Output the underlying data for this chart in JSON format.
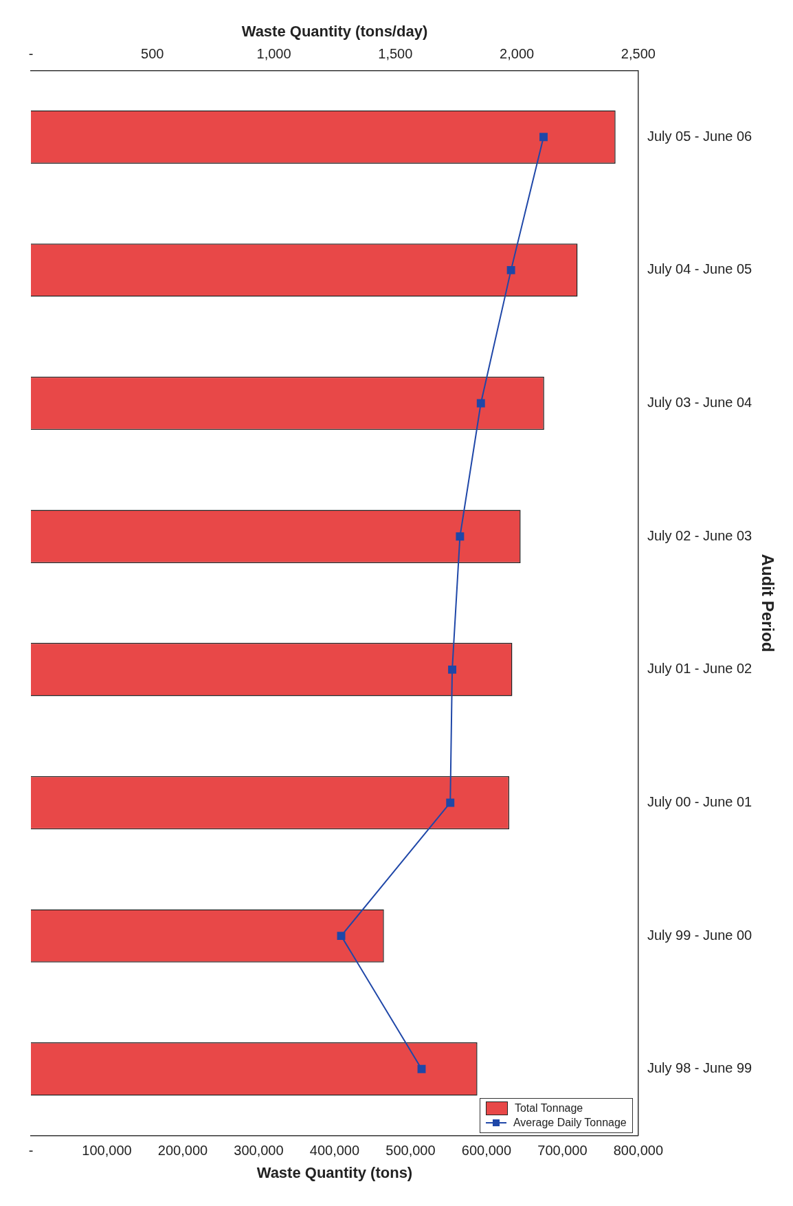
{
  "chart_data": {
    "type": "bar",
    "orientation": "horizontal",
    "categories": [
      "July 05 - June 06",
      "July 04 - June 05",
      "July 03 - June 04",
      "July 02 - June 03",
      "July 01 - June 02",
      "July 00 - June 01",
      "July 99 - June 00",
      "July 98 - June 99"
    ],
    "series": [
      {
        "name": "Total Tonnage",
        "color": "#e84848",
        "values": [
          770000,
          720000,
          676000,
          645000,
          634000,
          630000,
          465000,
          588000
        ]
      },
      {
        "name": "Average Daily Tonnage",
        "type": "line",
        "axis": "x2",
        "color": "#1f47a8",
        "values": [
          2110,
          1976,
          1852,
          1766,
          1734,
          1726,
          1277,
          1608
        ]
      }
    ],
    "xlabel": "Waste Quantity (tons)",
    "x2label": "Waste Quantity (tons/day)",
    "ylabel": "Audit Period",
    "xlim": [
      0,
      800000
    ],
    "xticks": [
      {
        "value": 0,
        "label": "-"
      },
      {
        "value": 100000,
        "label": "100,000"
      },
      {
        "value": 200000,
        "label": "200,000"
      },
      {
        "value": 300000,
        "label": "300,000"
      },
      {
        "value": 400000,
        "label": "400,000"
      },
      {
        "value": 500000,
        "label": "500,000"
      },
      {
        "value": 600000,
        "label": "600,000"
      },
      {
        "value": 700000,
        "label": "700,000"
      },
      {
        "value": 800000,
        "label": "800,000"
      }
    ],
    "x2lim": [
      0,
      2500
    ],
    "x2ticks": [
      {
        "value": 0,
        "label": "-"
      },
      {
        "value": 500,
        "label": "500"
      },
      {
        "value": 1000,
        "label": "1,000"
      },
      {
        "value": 1500,
        "label": "1,500"
      },
      {
        "value": 2000,
        "label": "2,000"
      },
      {
        "value": 2500,
        "label": "2,500"
      }
    ],
    "legend": "bottom right",
    "marker": "square"
  }
}
